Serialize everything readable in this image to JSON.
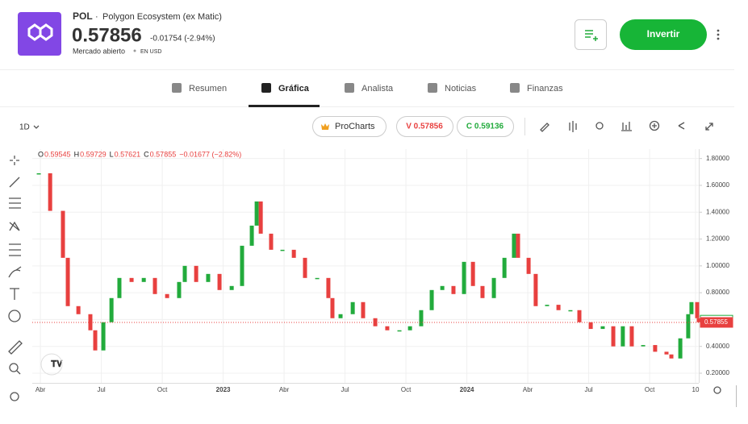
{
  "header": {
    "symbol": "POL",
    "name": "Polygon Ecosystem (ex Matic)",
    "price": "0.57856",
    "change": "-0.01754 (-2.94%)",
    "status": "Mercado abierto",
    "currency": "EN USD",
    "button": "Invertir"
  },
  "tabs": [
    "Resumen",
    "Gráfica",
    "Analista",
    "Noticias",
    "Finanzas"
  ],
  "toolbar": {
    "interval": "1D",
    "procharts": "ProCharts",
    "sell": "V 0.57856",
    "buy": "C 0.59136"
  },
  "chart_data": {
    "type": "candlestick",
    "ohlc_legend": [
      {
        "key": "O",
        "value": "0.59545"
      },
      {
        "key": "H",
        "value": "0.59729"
      },
      {
        "key": "L",
        "value": "0.57621"
      },
      {
        "key": "C",
        "value": "0.57855"
      }
    ],
    "legend_change": "−0.01677 (−2.82%)",
    "x": [
      -0.08,
      0.48,
      1.11,
      1.35,
      1.87,
      2.46,
      2.7,
      3.1,
      3.5,
      3.89,
      4.49,
      5.09,
      5.64,
      6.24,
      6.83,
      7.11,
      7.67,
      8.26,
      8.82,
      9.42,
      9.93,
      10.41,
      10.65,
      10.85,
      11.36,
      11.92,
      12.48,
      13.03,
      13.63,
      14.18,
      14.38,
      14.78,
      15.38,
      15.89,
      16.49,
      17.08,
      17.68,
      18.2,
      18.75,
      19.27,
      19.79,
      20.34,
      20.86,
      21.3,
      21.77,
      22.33,
      22.85,
      23.32,
      23.52,
      24.04,
      24.39,
      24.95,
      25.51,
      26.1,
      26.54,
      27.1,
      27.69,
      28.21,
      28.68,
      29.12,
      29.68,
      30.27,
      30.83,
      31.07,
      31.51,
      31.9,
      32.06,
      32.34,
      32.42
    ],
    "values": [
      1.69,
      1.41,
      1.06,
      0.7,
      0.64,
      0.52,
      0.37,
      0.58,
      0.76,
      0.91,
      0.88,
      0.91,
      0.79,
      0.76,
      0.88,
      1.0,
      0.88,
      0.94,
      0.82,
      0.85,
      1.15,
      1.3,
      1.48,
      1.24,
      1.12,
      1.12,
      1.06,
      0.91,
      0.91,
      0.76,
      0.61,
      0.64,
      0.73,
      0.61,
      0.55,
      0.52,
      0.52,
      0.55,
      0.67,
      0.82,
      0.85,
      0.79,
      1.03,
      0.85,
      0.76,
      0.91,
      1.06,
      1.24,
      1.06,
      0.94,
      0.7,
      0.71,
      0.67,
      0.67,
      0.58,
      0.53,
      0.55,
      0.4,
      0.55,
      0.4,
      0.41,
      0.36,
      0.34,
      0.31,
      0.46,
      0.64,
      0.73,
      0.61,
      0.58
    ],
    "up_color": "#22ab3c",
    "down_color": "#e8403f",
    "xlim": [
      -0.4,
      32.42
    ],
    "xticks": [
      {
        "value": 0,
        "label": "Abr"
      },
      {
        "value": 3,
        "label": "Jul"
      },
      {
        "value": 6,
        "label": "Oct"
      },
      {
        "value": 9,
        "label": "2023"
      },
      {
        "value": 12,
        "label": "Abr"
      },
      {
        "value": 15,
        "label": "Jul"
      },
      {
        "value": 18,
        "label": "Oct"
      },
      {
        "value": 21,
        "label": "2024"
      },
      {
        "value": 24,
        "label": "Abr"
      },
      {
        "value": 27,
        "label": "Jul"
      },
      {
        "value": 30,
        "label": "Oct"
      },
      {
        "value": 32.26,
        "label": "10"
      }
    ],
    "ylim": [
      0.128,
      1.87
    ],
    "yticks": [
      {
        "value": 0.2,
        "label": "0.20000"
      },
      {
        "value": 0.4,
        "label": "0.40000"
      },
      {
        "value": 0.6,
        "label": "0.60000"
      },
      {
        "value": 0.8,
        "label": "0.80000"
      },
      {
        "value": 1.0,
        "label": "1.00000"
      },
      {
        "value": 1.2,
        "label": "1.20000"
      },
      {
        "value": 1.4,
        "label": "1.40000"
      },
      {
        "value": 1.6,
        "label": "1.60000"
      },
      {
        "value": 1.8,
        "label": "1.80000"
      }
    ],
    "price_tags": [
      {
        "value": 0.59532,
        "label": "0.59532",
        "color": "#22ab3c"
      },
      {
        "value": 0.57855,
        "label": "0.57855",
        "color": "#e8403f"
      }
    ],
    "grid": true
  }
}
